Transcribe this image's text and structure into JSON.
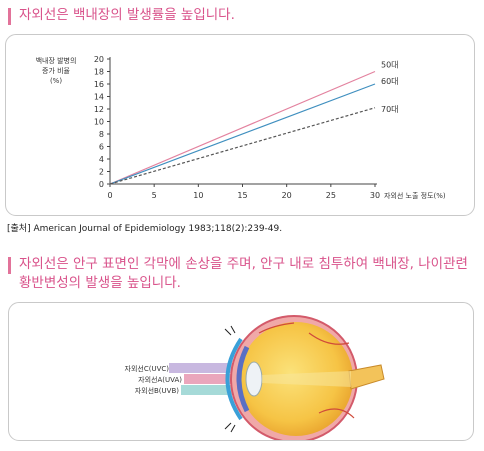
{
  "header1": {
    "title": "자외선은 백내장의 발생률을 높입니다."
  },
  "chart_data": {
    "type": "line",
    "ylabel": [
      "백내장 발병의",
      "증가 비율",
      "(%)"
    ],
    "xlabel": "자외선 노출 정도(%)",
    "xlim": [
      0,
      30
    ],
    "ylim": [
      0,
      20
    ],
    "x_ticks": [
      "0",
      "5",
      "10",
      "15",
      "20",
      "25",
      "30"
    ],
    "y_ticks": [
      "0",
      "2",
      "4",
      "6",
      "8",
      "10",
      "12",
      "14",
      "16",
      "18",
      "20"
    ],
    "grid": false,
    "series": [
      {
        "name": "50대",
        "color": "#e3829f",
        "dash": false,
        "x": [
          0,
          30
        ],
        "y": [
          0,
          18
        ]
      },
      {
        "name": "60대",
        "color": "#3f8fbf",
        "dash": false,
        "x": [
          0,
          30
        ],
        "y": [
          0,
          16
        ]
      },
      {
        "name": "70대",
        "color": "#555555",
        "dash": true,
        "x": [
          0,
          30
        ],
        "y": [
          0,
          12.2
        ]
      }
    ]
  },
  "source": {
    "text": "[출처] American Journal of Epidemiology 1983;118(2):239-49."
  },
  "header2": {
    "title": "자외선은 안구 표면인 각막에 손상을 주며, 안구 내로 침투하여 백내장, 나이관련 황반변성의 발생을 높입니다."
  },
  "eye": {
    "rays": [
      {
        "label": "자외선C(UVC)",
        "color": "#c8b8e0"
      },
      {
        "label": "자외선A(UVA)",
        "color": "#eaa6bc"
      },
      {
        "label": "자외선B(UVB)",
        "color": "#a6dad8"
      }
    ]
  },
  "colors": {
    "accent": "#d9538b",
    "panel_border": "#c9c9c9"
  }
}
